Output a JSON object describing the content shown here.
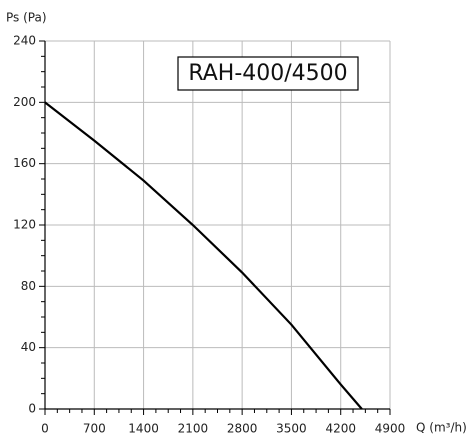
{
  "chart_data": {
    "type": "line",
    "x_label": "Q (m³/h)",
    "y_label": "Ps (Pa)",
    "annotation": "RAH-400/4500",
    "x": [
      0,
      700,
      1400,
      2100,
      2800,
      3500,
      4200,
      4500
    ],
    "series": [
      {
        "name": "RAH-400/4500",
        "color": "#000000",
        "values": [
          200,
          175,
          149,
          120,
          89,
          55,
          16,
          0
        ]
      }
    ],
    "xlim": [
      0,
      4900
    ],
    "xticks": [
      0,
      700,
      1400,
      2100,
      2800,
      3500,
      4200,
      4900
    ],
    "ylim": [
      0,
      240
    ],
    "yticks": [
      0,
      40,
      80,
      120,
      160,
      200,
      240
    ],
    "grid": true
  }
}
